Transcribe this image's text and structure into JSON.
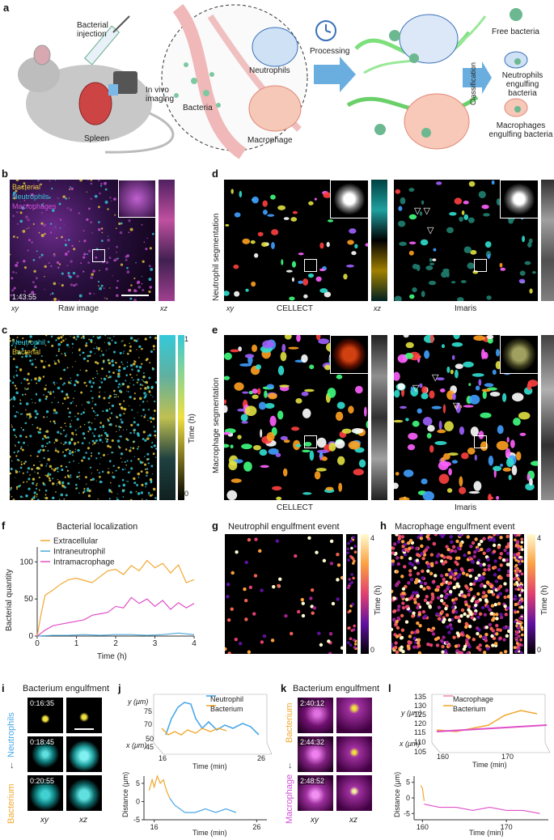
{
  "panel_a": {
    "label": "a",
    "bacterial_injection": "Bacterial injection",
    "in_vivo_imaging": "In vivo imaging",
    "spleen": "Spleen",
    "bacteria": "Bacteria",
    "neutrophils": "Neutrophils",
    "macrophage": "Macrophage",
    "processing": "Processing",
    "classification": "Classification",
    "free_bacteria": "Free bacteria",
    "neutrophils_engulfing": "Neutrophils engulfing bacteria",
    "macrophages_engulfing": "Macrophages engulfing bacteria"
  },
  "panel_b": {
    "label": "b",
    "legend": [
      "Bacterial",
      "Neutrophils",
      "Macrophages"
    ],
    "legend_colors": [
      "#e6c93b",
      "#35c9d8",
      "#d050d8"
    ],
    "timestamp": "1:43:55",
    "xy": "xy",
    "xz": "xz",
    "caption": "Raw image"
  },
  "panel_c": {
    "label": "c",
    "legend": [
      "Neutrophil",
      "Bacterial"
    ],
    "legend_colors": [
      "#35c9d8",
      "#e6c93b"
    ],
    "cbar_label": "Time (h)",
    "cbar_ticks": [
      "1",
      "0"
    ]
  },
  "panel_d": {
    "label": "d",
    "row_label": "Neutrophil segmentation",
    "xy": "xy",
    "xz": "xz",
    "left_caption": "CELLECT",
    "right_caption": "Imaris"
  },
  "panel_e": {
    "label": "e",
    "row_label": "Macrophage segmentation",
    "left_caption": "CELLECT",
    "right_caption": "Imaris"
  },
  "panel_f": {
    "label": "f",
    "chart_data": {
      "type": "line",
      "title": "Bacterial localization",
      "xlabel": "Time (h)",
      "ylabel": "Bacterial quantity",
      "xlim": [
        0,
        4
      ],
      "ylim": [
        0,
        120
      ],
      "xticks": [
        "0",
        "1",
        "2",
        "3",
        "4"
      ],
      "yticks": [
        "0",
        "50",
        "100"
      ],
      "legend_position": "top-left",
      "series": [
        {
          "name": "Extracellular",
          "color": "#f0a830",
          "x": [
            0,
            0.1,
            0.2,
            0.4,
            0.6,
            0.8,
            1.0,
            1.2,
            1.4,
            1.6,
            1.8,
            2.0,
            2.2,
            2.4,
            2.6,
            2.8,
            3.0,
            3.2,
            3.4,
            3.6,
            3.8,
            4.0
          ],
          "y": [
            0,
            30,
            55,
            62,
            70,
            76,
            78,
            75,
            72,
            80,
            88,
            90,
            83,
            95,
            88,
            102,
            92,
            98,
            85,
            96,
            72,
            76
          ]
        },
        {
          "name": "Intraneutrophil",
          "color": "#4aa8d8",
          "x": [
            0,
            0.4,
            0.8,
            1.2,
            1.6,
            2.0,
            2.4,
            2.8,
            3.2,
            3.6,
            4.0
          ],
          "y": [
            0,
            1,
            1,
            2,
            1,
            2,
            2,
            1,
            2,
            4,
            2
          ]
        },
        {
          "name": "Intramacrophage",
          "color": "#e050c8",
          "x": [
            0,
            0.2,
            0.4,
            0.6,
            0.8,
            1.0,
            1.2,
            1.4,
            1.6,
            1.8,
            2.0,
            2.2,
            2.4,
            2.6,
            2.8,
            3.0,
            3.2,
            3.4,
            3.6,
            3.8,
            4.0
          ],
          "y": [
            0,
            8,
            14,
            16,
            18,
            20,
            22,
            28,
            30,
            32,
            40,
            38,
            52,
            44,
            50,
            40,
            48,
            36,
            45,
            38,
            44
          ]
        }
      ]
    }
  },
  "panel_g": {
    "label": "g",
    "title": "Neutrophil engulfment event",
    "cbar_label": "Time (h)",
    "cbar_ticks": [
      "4",
      "0"
    ]
  },
  "panel_h": {
    "label": "h",
    "title": "Macrophage engulfment event",
    "cbar_label": "Time (h)",
    "cbar_ticks": [
      "4",
      "0"
    ]
  },
  "panel_i": {
    "label": "i",
    "title": "Bacterium engulfment",
    "timestamps": [
      "0:16:35",
      "0:18:45",
      "0:20:55"
    ],
    "side_top": "Neutrophils",
    "side_bottom": "Bacterium",
    "xy": "xy",
    "xz": "xz"
  },
  "panel_j": {
    "label": "j",
    "legend": [
      "Neutrophil",
      "Bacterium"
    ],
    "legend_colors": [
      "#4aa8e8",
      "#f0a830"
    ],
    "y_label": "y (μm)",
    "y_ticks": [
      "75",
      "70"
    ],
    "x_label": "x (μm)",
    "x_ticks": [
      "45",
      "50"
    ],
    "time_ticks": [
      "16",
      "26"
    ],
    "time_label": "Time (min)",
    "chart_data": {
      "type": "line",
      "ylabel": "Distance (μm)",
      "xlabel": "Time (min)",
      "xlim": [
        15,
        27
      ],
      "ylim": [
        -5,
        7
      ],
      "xticks": [
        "16",
        "26"
      ],
      "yticks": [
        "5",
        "0",
        "-5"
      ],
      "series": [
        {
          "name": "Bacterium",
          "color": "#f0a830",
          "x": [
            15.5,
            15.8,
            16.0,
            16.3,
            16.6,
            16.9,
            17.2,
            17.5
          ],
          "y": [
            3,
            6,
            4,
            7,
            5,
            6,
            3,
            1
          ]
        },
        {
          "name": "Neutrophil",
          "color": "#4aa8e8",
          "x": [
            17.5,
            18,
            18.5,
            19,
            20,
            21,
            22,
            23,
            24
          ],
          "y": [
            1,
            -1,
            -2,
            -3,
            -3,
            -2,
            -3,
            -2,
            -3
          ]
        }
      ]
    }
  },
  "panel_k": {
    "label": "k",
    "title": "Bacterium engulfment",
    "timestamps": [
      "2:40:12",
      "2:44:32",
      "2:48:52"
    ],
    "side_top": "Bacterium",
    "side_bottom": "Macrophage",
    "xy": "xy",
    "xz": "xz"
  },
  "panel_l": {
    "label": "l",
    "legend": [
      "Macrophage",
      "Bacterium"
    ],
    "legend_colors": [
      "#f090c0",
      "#f0a830"
    ],
    "y_label": "y (μm)",
    "y_ticks": [
      "135",
      "130",
      "125",
      "120",
      "115"
    ],
    "x_label": "x (μm)",
    "x_ticks": [
      "105",
      "110"
    ],
    "time_ticks": [
      "160",
      "170"
    ],
    "time_label": "Time (min)",
    "chart_data": {
      "type": "line",
      "ylabel": "Distance (μm)",
      "xlabel": "Time (min)",
      "xlim": [
        159,
        175
      ],
      "ylim": [
        -7,
        7
      ],
      "xticks": [
        "160",
        "170"
      ],
      "yticks": [
        "5",
        "0",
        "-5"
      ],
      "series": [
        {
          "name": "Bacterium",
          "color": "#f0a830",
          "x": [
            159.8,
            160.0,
            160.2
          ],
          "y": [
            4,
            3,
            -1
          ]
        },
        {
          "name": "Macrophage",
          "color": "#e050c8",
          "x": [
            160.2,
            162,
            164,
            166,
            168,
            170,
            172,
            174
          ],
          "y": [
            -2,
            -3,
            -3,
            -4,
            -3,
            -4,
            -4,
            -5
          ]
        }
      ]
    }
  }
}
